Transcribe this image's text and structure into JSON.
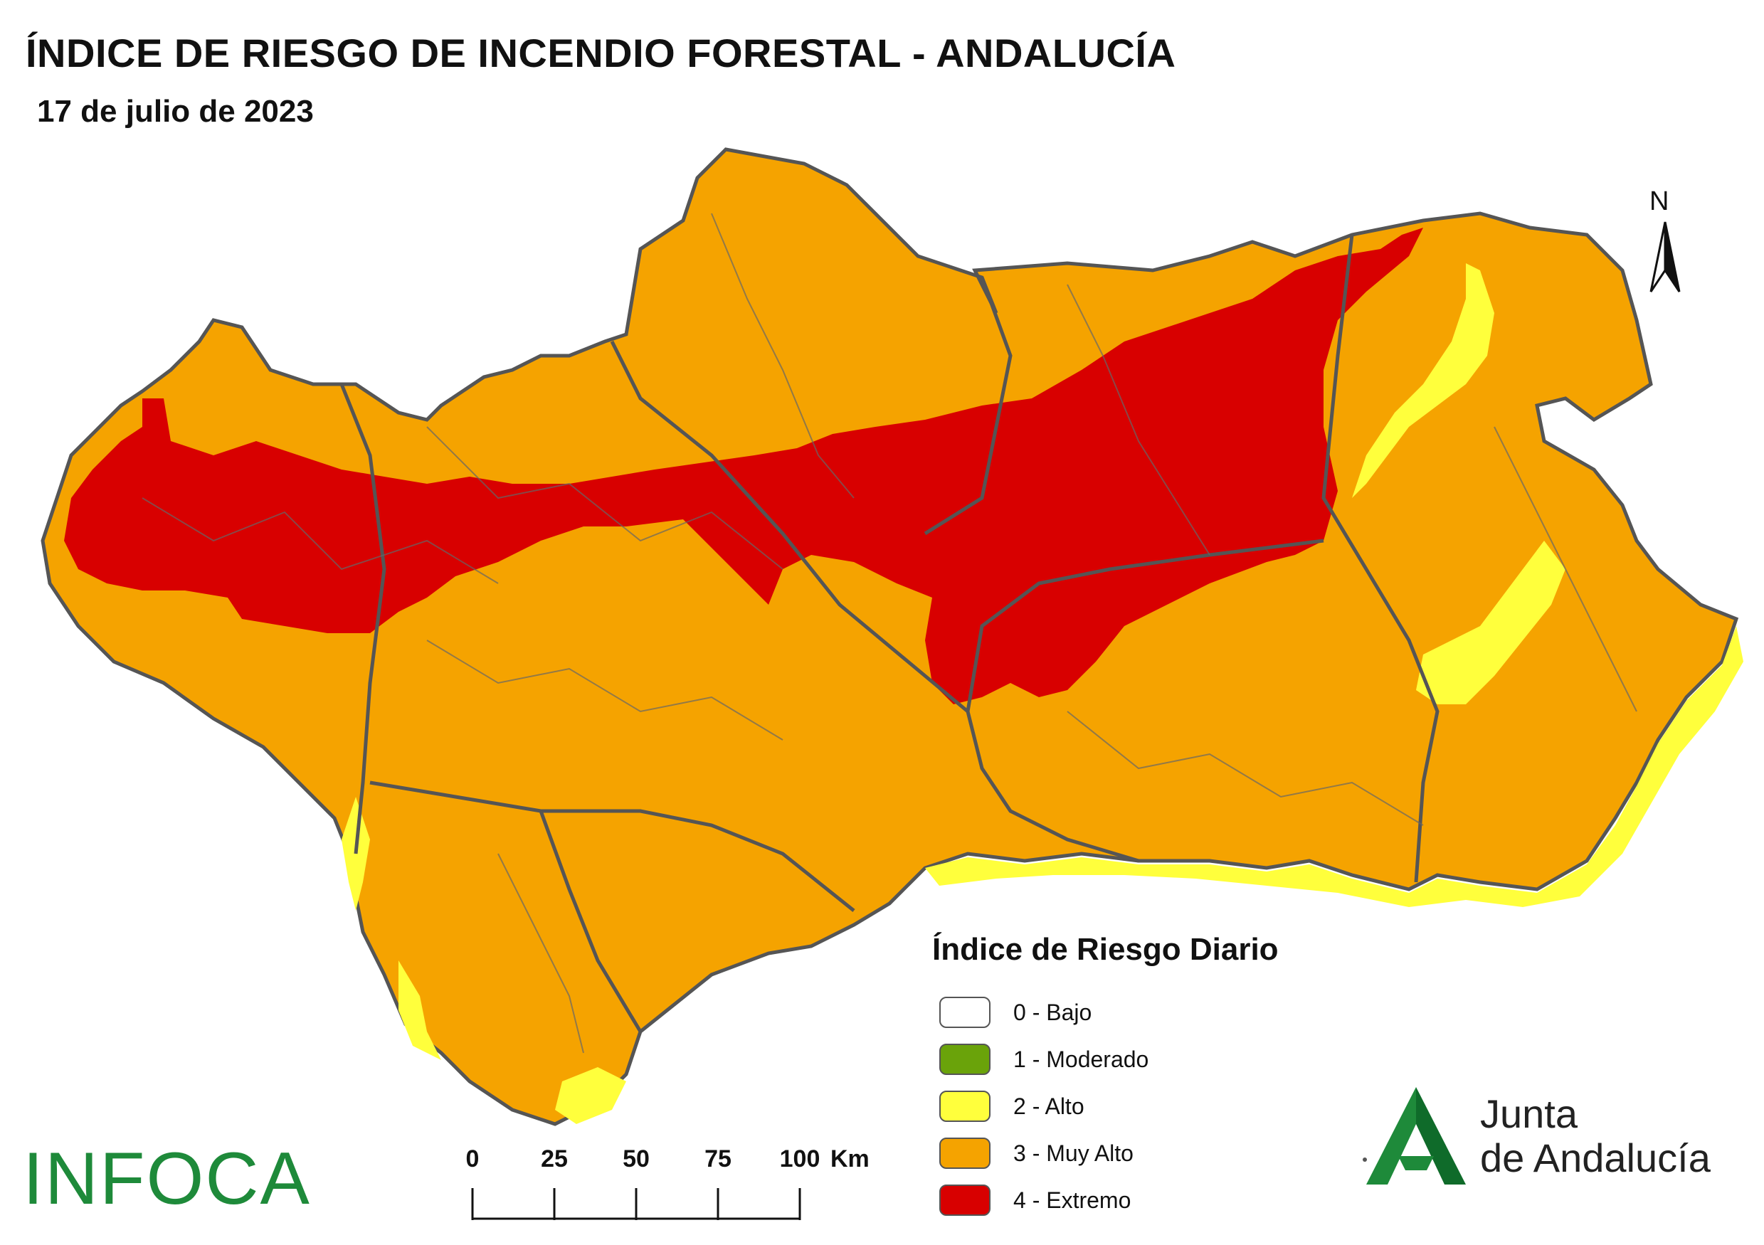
{
  "title": "ÍNDICE DE RIESGO DE INCENDIO FORESTAL - ANDALUCÍA",
  "subtitle": "17 de julio de 2023",
  "north": "N",
  "legend": {
    "title": "Índice de Riesgo Diario",
    "items": [
      {
        "label": "0 - Bajo",
        "color": "#ffffff"
      },
      {
        "label": "1 - Moderado",
        "color": "#6aa30a"
      },
      {
        "label": "2 - Alto",
        "color": "#ffff3c"
      },
      {
        "label": "3 - Muy Alto",
        "color": "#f5a300"
      },
      {
        "label": "4 - Extremo",
        "color": "#d80000"
      }
    ]
  },
  "scale": {
    "ticks": [
      "0",
      "25",
      "50",
      "75",
      "100"
    ],
    "unit": "Km"
  },
  "logos": {
    "infoca": "INFOCA",
    "junta_line1": "Junta",
    "junta_line2": "de Andalucía"
  },
  "colors": {
    "muy_alto": "#f5a300",
    "extremo": "#d80000",
    "alto": "#ffff3c",
    "border": "#555555",
    "brand_green": "#1e8a3a"
  }
}
